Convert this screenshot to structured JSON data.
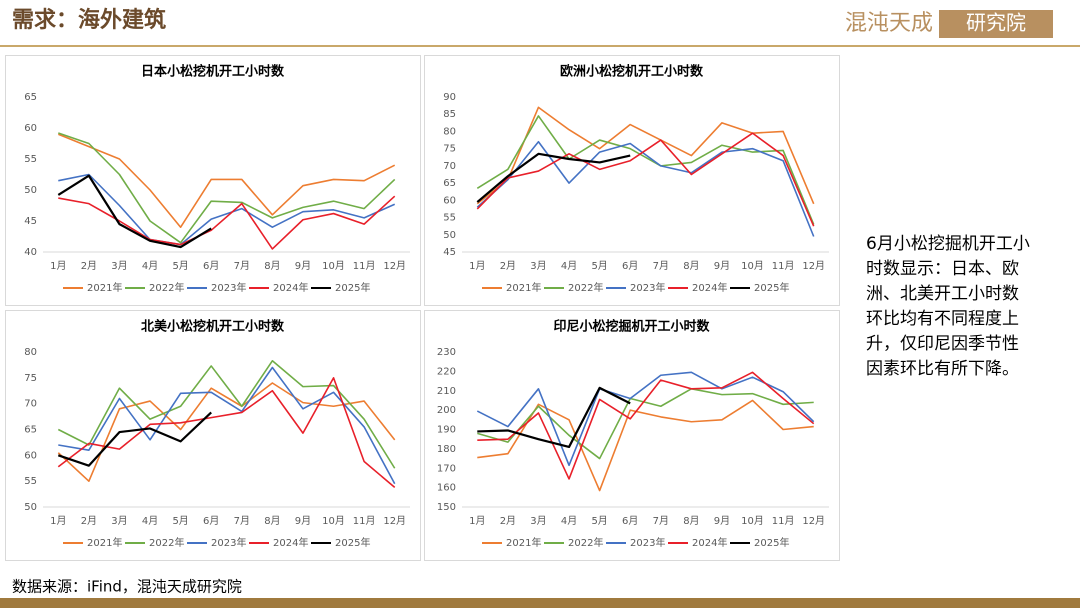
{
  "header": {
    "title": "需求：海外建筑"
  },
  "brand": [
    "混沌天成",
    "研究院"
  ],
  "note": [
    "6月小松挖掘机开工小",
    "时数显示：日本、欧",
    "洲、北美开工小时数",
    "环比均有不同程度上",
    "升，仅印尼因季节性",
    "因素环比有所下降。"
  ],
  "source": "数据来源：iFind，混沌天成研究院",
  "chart_data": [
    {
      "type": "line",
      "title": "日本小松挖机开工小时数",
      "categories": [
        "1月",
        "2月",
        "3月",
        "4月",
        "5月",
        "6月",
        "7月",
        "8月",
        "9月",
        "10月",
        "11月",
        "12月"
      ],
      "ylim": [
        40,
        65
      ],
      "yticks": [
        40,
        45,
        50,
        55,
        60,
        65
      ],
      "grid": false,
      "series": [
        {
          "name": "2021年",
          "color": "#ED7D31",
          "values": [
            59,
            57,
            55,
            50,
            44,
            51.7,
            51.7,
            46,
            50.7,
            51.7,
            51.5,
            54
          ]
        },
        {
          "name": "2022年",
          "color": "#70AD47",
          "values": [
            59.2,
            57.5,
            52.5,
            45,
            41.5,
            48.2,
            48,
            45.5,
            47.2,
            48.2,
            47,
            51.7
          ]
        },
        {
          "name": "2023年",
          "color": "#4472C4",
          "values": [
            51.5,
            52.5,
            47.5,
            42,
            41.2,
            45.3,
            47,
            44,
            46.5,
            46.8,
            45.5,
            47.7
          ]
        },
        {
          "name": "2024年",
          "color": "#E8202A",
          "values": [
            48.7,
            47.8,
            45,
            42,
            41.2,
            43.5,
            47.8,
            40.5,
            45.2,
            46.2,
            44.5,
            49
          ]
        },
        {
          "name": "2025年",
          "color": "#000000",
          "values": [
            49.2,
            52.3,
            44.5,
            41.8,
            40.8,
            43.8,
            null,
            null,
            null,
            null,
            null,
            null
          ]
        }
      ]
    },
    {
      "type": "line",
      "title": "欧洲小松挖机开工小时数",
      "categories": [
        "1月",
        "2月",
        "3月",
        "4月",
        "5月",
        "6月",
        "7月",
        "8月",
        "9月",
        "10月",
        "11月",
        "12月"
      ],
      "ylim": [
        45,
        90
      ],
      "yticks": [
        45,
        50,
        55,
        60,
        65,
        70,
        75,
        80,
        85,
        90
      ],
      "grid": false,
      "series": [
        {
          "name": "2021年",
          "color": "#ED7D31",
          "values": [
            59,
            66,
            87,
            80.5,
            75,
            82,
            77.5,
            73,
            82.5,
            79.5,
            80,
            59
          ]
        },
        {
          "name": "2022年",
          "color": "#70AD47",
          "values": [
            63.5,
            69,
            84.5,
            72,
            77.5,
            75,
            70,
            71,
            76,
            74,
            74.5,
            53
          ]
        },
        {
          "name": "2023年",
          "color": "#4472C4",
          "values": [
            58,
            66,
            77,
            65,
            74,
            76.5,
            70,
            68,
            74,
            75,
            71.5,
            49.5
          ]
        },
        {
          "name": "2024年",
          "color": "#E8202A",
          "values": [
            57.5,
            66.5,
            68.5,
            73.5,
            69,
            71.5,
            77.5,
            67.5,
            73.5,
            79.5,
            73,
            52.5
          ]
        },
        {
          "name": "2025年",
          "color": "#000000",
          "values": [
            59.5,
            67,
            73.5,
            72,
            71,
            73,
            null,
            null,
            null,
            null,
            null,
            null
          ]
        }
      ]
    },
    {
      "type": "line",
      "title": "北美小松挖机开工小时数",
      "categories": [
        "1月",
        "2月",
        "3月",
        "4月",
        "5月",
        "6月",
        "7月",
        "8月",
        "9月",
        "10月",
        "11月",
        "12月"
      ],
      "ylim": [
        50,
        80
      ],
      "yticks": [
        50,
        55,
        60,
        65,
        70,
        75,
        80
      ],
      "grid": false,
      "series": [
        {
          "name": "2021年",
          "color": "#ED7D31",
          "values": [
            60.5,
            55,
            69,
            70.5,
            65,
            73,
            69.5,
            74,
            70.2,
            69.5,
            70.5,
            63
          ]
        },
        {
          "name": "2022年",
          "color": "#70AD47",
          "values": [
            65,
            62,
            73,
            67,
            69.5,
            77.3,
            69.5,
            78.3,
            73.3,
            73.5,
            67,
            57.5
          ]
        },
        {
          "name": "2023年",
          "color": "#4472C4",
          "values": [
            62,
            61,
            71,
            63,
            72,
            72.2,
            68.5,
            77,
            69,
            72.2,
            65.5,
            54.5
          ]
        },
        {
          "name": "2024年",
          "color": "#E8202A",
          "values": [
            57.8,
            62.3,
            61.2,
            66,
            66.3,
            67.3,
            68.3,
            72.5,
            64.3,
            75,
            58.8,
            53.8
          ]
        },
        {
          "name": "2025年",
          "color": "#000000",
          "values": [
            60,
            58,
            64.5,
            65.2,
            62.7,
            68.3,
            null,
            null,
            null,
            null,
            null,
            null
          ]
        }
      ]
    },
    {
      "type": "line",
      "title": "印尼小松挖掘机开工小时数",
      "categories": [
        "1月",
        "2月",
        "3月",
        "4月",
        "5月",
        "6月",
        "7月",
        "8月",
        "9月",
        "10月",
        "11月",
        "12月"
      ],
      "ylim": [
        150,
        230
      ],
      "yticks": [
        150,
        160,
        170,
        180,
        190,
        200,
        210,
        220,
        230
      ],
      "grid": false,
      "series": [
        {
          "name": "2021年",
          "color": "#ED7D31",
          "values": [
            175.5,
            177.5,
            203,
            195,
            158.5,
            200,
            196.5,
            194,
            195,
            205,
            190,
            191.5
          ]
        },
        {
          "name": "2022年",
          "color": "#70AD47",
          "values": [
            188,
            183.5,
            202,
            187,
            175,
            206,
            202,
            211,
            208,
            208.5,
            203,
            204
          ]
        },
        {
          "name": "2023年",
          "color": "#4472C4",
          "values": [
            199.5,
            191.5,
            211,
            171.5,
            211,
            206,
            218,
            219.5,
            211,
            217,
            209.5,
            194
          ]
        },
        {
          "name": "2024年",
          "color": "#E8202A",
          "values": [
            184.5,
            185,
            198.5,
            164.5,
            205.5,
            195.5,
            215.5,
            211,
            211.5,
            219.5,
            206,
            193
          ]
        },
        {
          "name": "2025年",
          "color": "#000000",
          "values": [
            189,
            189.5,
            185,
            181,
            211.5,
            203.5,
            null,
            null,
            null,
            null,
            null,
            null
          ]
        }
      ]
    }
  ]
}
